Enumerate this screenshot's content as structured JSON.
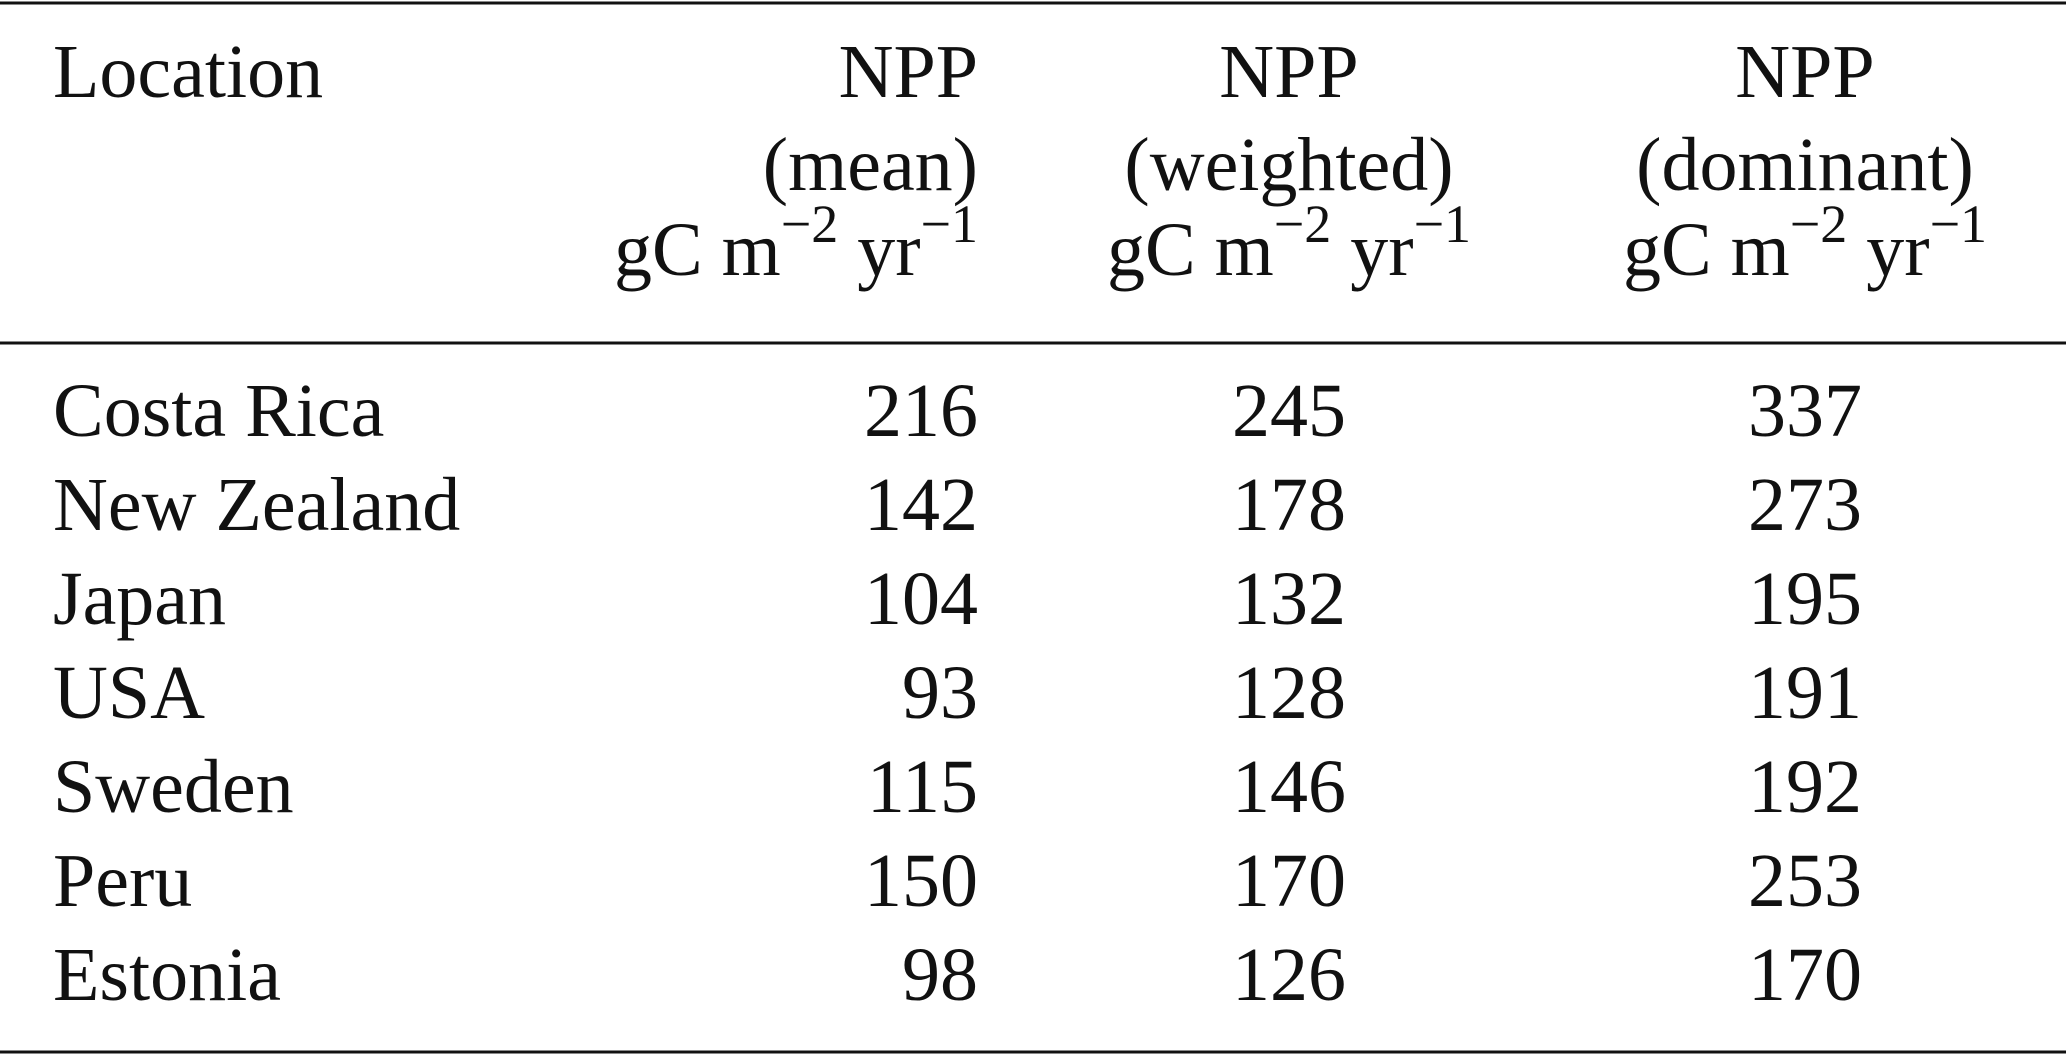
{
  "table": {
    "header": [
      {
        "lines": [
          "Location"
        ]
      },
      {
        "lines": [
          "NPP",
          "(mean)"
        ],
        "unit": {
          "base": "gC m",
          "exp1": "−2",
          "mid": " yr",
          "exp2": "−1"
        }
      },
      {
        "lines": [
          "NPP",
          "(weighted)"
        ],
        "unit": {
          "base": "gC m",
          "exp1": "−2",
          "mid": " yr",
          "exp2": "−1"
        }
      },
      {
        "lines": [
          "NPP",
          "(dominant)"
        ],
        "unit": {
          "base": "gC m",
          "exp1": "−2",
          "mid": " yr",
          "exp2": "−1"
        }
      }
    ],
    "rows": [
      [
        "Costa Rica",
        "216",
        "245",
        "337"
      ],
      [
        "New Zealand",
        "142",
        "178",
        "273"
      ],
      [
        "Japan",
        "104",
        "132",
        "195"
      ],
      [
        "USA",
        "93",
        "128",
        "191"
      ],
      [
        "Sweden",
        "115",
        "146",
        "192"
      ],
      [
        "Peru",
        "150",
        "170",
        "253"
      ],
      [
        "Estonia",
        "98",
        "126",
        "170"
      ]
    ]
  }
}
